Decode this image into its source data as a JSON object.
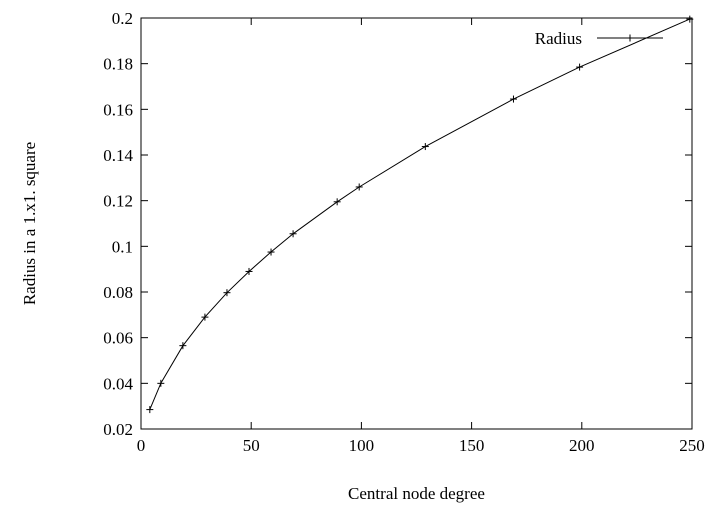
{
  "chart_data": {
    "type": "line",
    "title": "",
    "xlabel": "Central node degree",
    "ylabel": "Radius in a 1.x1. square",
    "xlim": [
      0,
      250
    ],
    "ylim": [
      0.02,
      0.2
    ],
    "x_ticks": [
      0,
      50,
      100,
      150,
      200,
      250
    ],
    "x_tick_labels": [
      "0",
      "50",
      "100",
      "150",
      "200",
      "250"
    ],
    "y_ticks": [
      0.02,
      0.04,
      0.06,
      0.08,
      0.1,
      0.12,
      0.14,
      0.16,
      0.18,
      0.2
    ],
    "y_tick_labels": [
      "0.02",
      "0.04",
      "0.06",
      "0.08",
      "0.1",
      "0.12",
      "0.14",
      "0.16",
      "0.18",
      "0.2"
    ],
    "grid": false,
    "legend_position": "top-right",
    "series": [
      {
        "name": "Radius",
        "color": "#000000",
        "marker": "plus",
        "x": [
          4,
          9,
          19,
          29,
          39,
          49,
          59,
          69,
          89,
          99,
          129,
          169,
          199,
          249
        ],
        "y": [
          0.0285,
          0.04,
          0.0565,
          0.069,
          0.0797,
          0.089,
          0.0975,
          0.1055,
          0.1195,
          0.126,
          0.1437,
          0.1645,
          0.1785,
          0.1995
        ]
      }
    ]
  }
}
